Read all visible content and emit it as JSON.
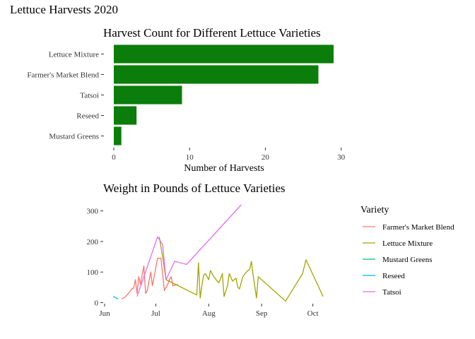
{
  "page_title": "Lettuce Harvests 2020",
  "chart_data": [
    {
      "type": "bar",
      "orientation": "horizontal",
      "title": "Harvest Count for Different Lettuce Varieties",
      "xlabel": "Number of Harvests",
      "ylabel": "",
      "xlim": [
        0,
        30.5
      ],
      "xticks": [
        0,
        10,
        20,
        30
      ],
      "bar_color": "#0a7d0a",
      "categories": [
        "Lettuce Mixture",
        "Farmer's Market Blend",
        "Tatsoi",
        "Reseed",
        "Mustard Greens"
      ],
      "values": [
        29,
        27,
        9,
        3,
        1
      ],
      "grid": false
    },
    {
      "type": "line",
      "title": "Weight in Pounds of Lettuce Varieties",
      "xlabel": "",
      "ylabel": "",
      "ylim": [
        0,
        320
      ],
      "yticks": [
        0,
        100,
        200,
        300
      ],
      "xlim": [
        "2020-06-01",
        "2020-10-14"
      ],
      "xticks": [
        {
          "date": "2020-06-01",
          "label": "Jun"
        },
        {
          "date": "2020-07-01",
          "label": "Jul"
        },
        {
          "date": "2020-08-01",
          "label": "Aug"
        },
        {
          "date": "2020-09-01",
          "label": "Sep"
        },
        {
          "date": "2020-10-01",
          "label": "Oct"
        }
      ],
      "legend_title": "Variety",
      "legend_position": "right",
      "grid": false,
      "series": [
        {
          "name": "Farmer's Market Blend",
          "color": "#f8766d",
          "points": [
            [
              "2020-06-11",
              12
            ],
            [
              "2020-06-13",
              18
            ],
            [
              "2020-06-15",
              30
            ],
            [
              "2020-06-17",
              45
            ],
            [
              "2020-06-18",
              48
            ],
            [
              "2020-06-19",
              75
            ],
            [
              "2020-06-20",
              30
            ],
            [
              "2020-06-21",
              85
            ],
            [
              "2020-06-22",
              60
            ],
            [
              "2020-06-24",
              120
            ],
            [
              "2020-06-25",
              30
            ],
            [
              "2020-06-26",
              40
            ],
            [
              "2020-06-28",
              100
            ],
            [
              "2020-06-29",
              55
            ],
            [
              "2020-07-02",
              145
            ],
            [
              "2020-07-04",
              145
            ],
            [
              "2020-07-06",
              40
            ],
            [
              "2020-07-08",
              60
            ],
            [
              "2020-07-09",
              75
            ],
            [
              "2020-07-10",
              85
            ],
            [
              "2020-07-11",
              55
            ],
            [
              "2020-07-14",
              60
            ]
          ]
        },
        {
          "name": "Lettuce Mixture",
          "color": "#a3a500",
          "points": [
            [
              "2020-07-03",
              215
            ],
            [
              "2020-07-05",
              150
            ],
            [
              "2020-07-07",
              75
            ],
            [
              "2020-07-25",
              25
            ],
            [
              "2020-07-26",
              130
            ],
            [
              "2020-07-27",
              15
            ],
            [
              "2020-07-28",
              55
            ],
            [
              "2020-07-29",
              90
            ],
            [
              "2020-07-30",
              95
            ],
            [
              "2020-07-31",
              85
            ],
            [
              "2020-08-01",
              75
            ],
            [
              "2020-08-02",
              105
            ],
            [
              "2020-08-04",
              85
            ],
            [
              "2020-08-06",
              70
            ],
            [
              "2020-08-07",
              65
            ],
            [
              "2020-08-09",
              95
            ],
            [
              "2020-08-10",
              20
            ],
            [
              "2020-08-12",
              55
            ],
            [
              "2020-08-13",
              95
            ],
            [
              "2020-08-15",
              70
            ],
            [
              "2020-08-17",
              80
            ],
            [
              "2020-08-18",
              50
            ],
            [
              "2020-08-19",
              45
            ],
            [
              "2020-08-21",
              85
            ],
            [
              "2020-08-23",
              100
            ],
            [
              "2020-08-25",
              110
            ],
            [
              "2020-08-26",
              135
            ],
            [
              "2020-08-27",
              90
            ],
            [
              "2020-08-29",
              15
            ],
            [
              "2020-08-30",
              85
            ],
            [
              "2020-09-15",
              5
            ],
            [
              "2020-09-25",
              95
            ],
            [
              "2020-09-27",
              140
            ],
            [
              "2020-10-07",
              20
            ]
          ]
        },
        {
          "name": "Mustard Greens",
          "color": "#00bf7d",
          "points": []
        },
        {
          "name": "Reseed",
          "color": "#00b0f6",
          "points": [
            [
              "2020-06-06",
              20
            ],
            [
              "2020-06-09",
              12
            ]
          ]
        },
        {
          "name": "Tatsoi",
          "color": "#e76bf3",
          "points": [
            [
              "2020-06-20",
              20
            ],
            [
              "2020-07-02",
              215
            ],
            [
              "2020-07-05",
              190
            ],
            [
              "2020-07-07",
              75
            ],
            [
              "2020-07-12",
              135
            ],
            [
              "2020-07-19",
              125
            ],
            [
              "2020-08-20",
              320
            ]
          ]
        }
      ]
    }
  ]
}
